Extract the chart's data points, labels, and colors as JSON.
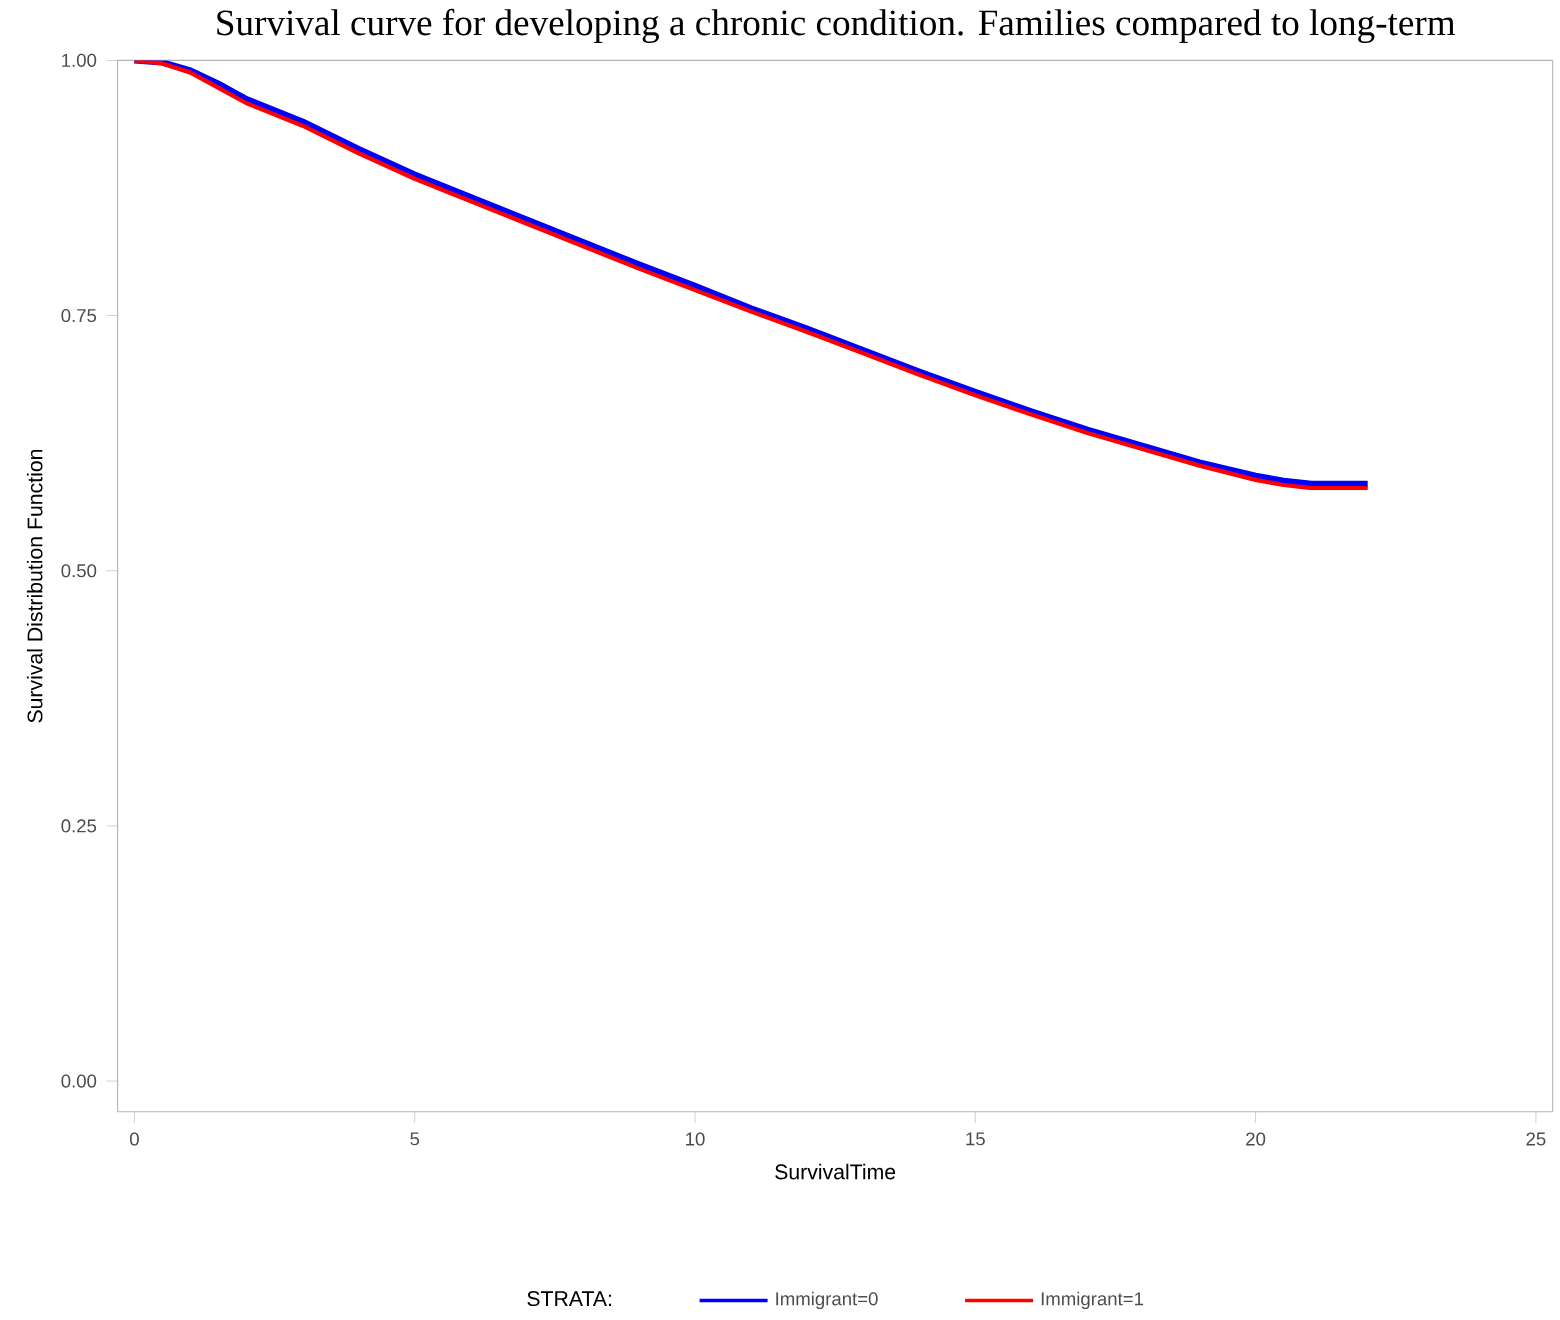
{
  "chart_data": {
    "type": "line",
    "title": "Survival curve for developing a chronic condition. Families compared to long-term",
    "xlabel": "SurvivalTime",
    "ylabel": "Survival Distribution Function",
    "legend_title": "STRATA:",
    "x": [
      0,
      0.5,
      1,
      1.5,
      2,
      3,
      4,
      5,
      6,
      7,
      8,
      9,
      10,
      11,
      12,
      13,
      14,
      15,
      16,
      17,
      18,
      19,
      20,
      20.5,
      21,
      22
    ],
    "series": [
      {
        "name": "Immigrant=0",
        "color": "#0000ff",
        "values": [
          1.0,
          0.998,
          0.99,
          0.977,
          0.962,
          0.94,
          0.913,
          0.888,
          0.866,
          0.844,
          0.822,
          0.8,
          0.779,
          0.757,
          0.737,
          0.716,
          0.695,
          0.675,
          0.656,
          0.638,
          0.622,
          0.606,
          0.593,
          0.588,
          0.585,
          0.585
        ]
      },
      {
        "name": "Immigrant=1",
        "color": "#ff0000",
        "values": [
          1.0,
          0.997,
          0.988,
          0.973,
          0.958,
          0.936,
          0.909,
          0.884,
          0.862,
          0.84,
          0.818,
          0.796,
          0.775,
          0.754,
          0.734,
          0.713,
          0.692,
          0.672,
          0.653,
          0.635,
          0.619,
          0.603,
          0.589,
          0.584,
          0.581,
          0.581
        ]
      }
    ],
    "xlim": [
      -0.3,
      25.3
    ],
    "ylim": [
      -0.03,
      1.0
    ],
    "xticks": [
      0,
      5,
      10,
      15,
      20,
      25
    ],
    "yticks": [
      {
        "value": 0,
        "label": "0.00"
      },
      {
        "value": 0.25,
        "label": "0.25"
      },
      {
        "value": 0.5,
        "label": "0.50"
      },
      {
        "value": 0.75,
        "label": "0.75"
      },
      {
        "value": 1.0,
        "label": "1.00"
      }
    ],
    "grid": false,
    "legend": "bottom",
    "marker": "none",
    "line_style": "solid"
  }
}
